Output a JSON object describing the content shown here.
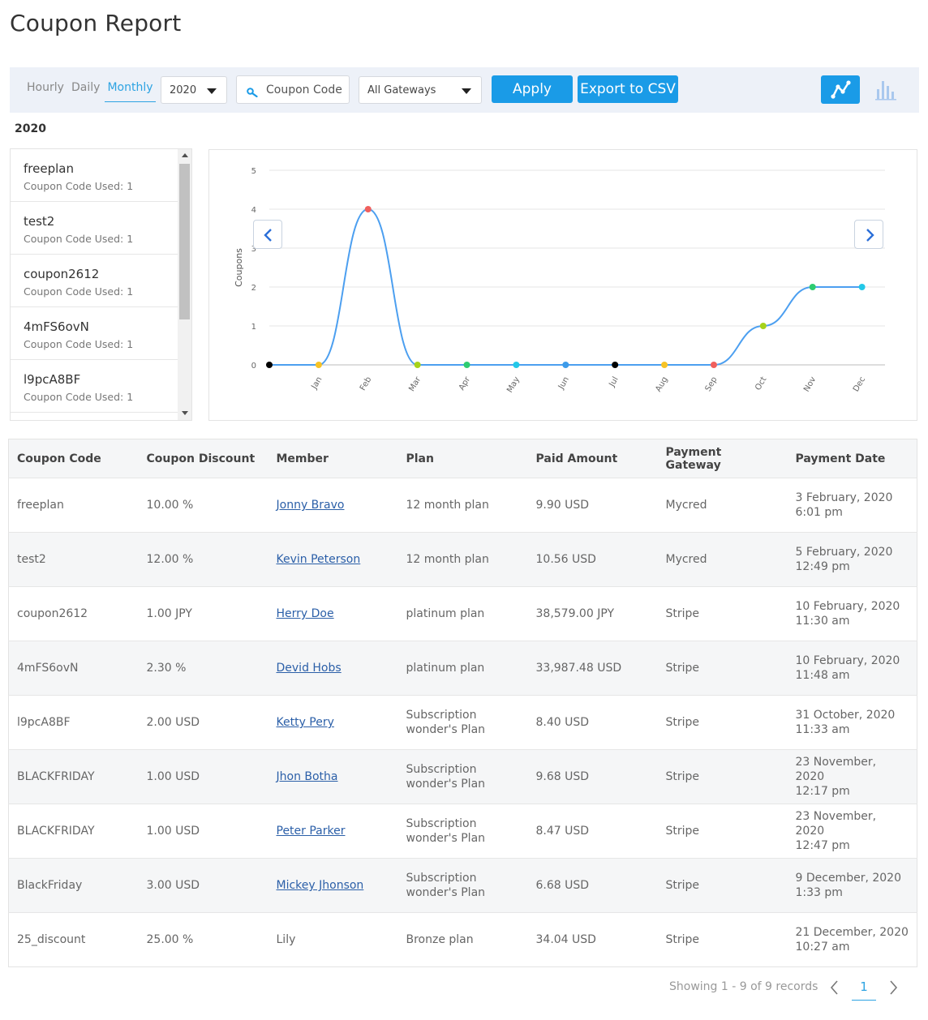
{
  "header": {
    "title": "Coupon Report"
  },
  "toolbar": {
    "periods": [
      {
        "label": "Hourly",
        "active": false
      },
      {
        "label": "Daily",
        "active": false
      },
      {
        "label": "Monthly",
        "active": true
      }
    ],
    "year_select": "2020",
    "search_placeholder": "Coupon Code",
    "gateway_select": "All Gateways",
    "apply_label": "Apply",
    "export_label": "Export to CSV",
    "view_icons": [
      "line-chart-icon",
      "bar-chart-icon"
    ],
    "accent_color": "#1a9be7"
  },
  "year_label": "2020",
  "coupon_list": [
    {
      "name": "freeplan",
      "used": "Coupon Code Used: 1"
    },
    {
      "name": "test2",
      "used": "Coupon Code Used: 1"
    },
    {
      "name": "coupon2612",
      "used": "Coupon Code Used: 1"
    },
    {
      "name": "4mFS6ovN",
      "used": "Coupon Code Used: 1"
    },
    {
      "name": "l9pcA8BF",
      "used": "Coupon Code Used: 1"
    }
  ],
  "chart_data": {
    "type": "line",
    "ylabel": "Coupons",
    "ylim": [
      0,
      5
    ],
    "yticks": [
      "0",
      "1",
      "2",
      "3",
      "4",
      "5"
    ],
    "categories": [
      "",
      "Jan",
      "Feb",
      "Mar",
      "Apr",
      "May",
      "Jun",
      "Jul",
      "Aug",
      "Sep",
      "Oct",
      "Nov",
      "Dec"
    ],
    "values": [
      0,
      0,
      4,
      0,
      0,
      0,
      0,
      0,
      0,
      0,
      1,
      2,
      2
    ],
    "point_colors": [
      "#000000",
      "#f7c325",
      "#f0605d",
      "#a6d21a",
      "#2ecc71",
      "#22c8e8",
      "#3d9be9",
      "#000000",
      "#f7c325",
      "#f0605d",
      "#a6d21a",
      "#2ecc71",
      "#22c8e8"
    ],
    "line_color": "#4c9ff0",
    "grid": true,
    "legend": "none"
  },
  "table": {
    "headers": [
      "Coupon Code",
      "Coupon Discount",
      "Member",
      "Plan",
      "Paid Amount",
      "Payment Gateway",
      "Payment Date"
    ],
    "rows": [
      {
        "code": "freeplan",
        "discount": "10.00 %",
        "member": "Jonny Bravo",
        "member_link": true,
        "plan": "12 month plan",
        "amount": "9.90 USD",
        "gateway": "Mycred",
        "date": "3 February, 2020",
        "time": "6:01 pm"
      },
      {
        "code": "test2",
        "discount": "12.00 %",
        "member": "Kevin Peterson",
        "member_link": true,
        "plan": "12 month plan",
        "amount": "10.56 USD",
        "gateway": "Mycred",
        "date": "5 February, 2020",
        "time": "12:49 pm"
      },
      {
        "code": "coupon2612",
        "discount": "1.00 JPY",
        "member": "Herry Doe",
        "member_link": true,
        "plan": "platinum plan",
        "amount": "38,579.00 JPY",
        "gateway": "Stripe",
        "date": "10 February, 2020",
        "time": "11:30 am"
      },
      {
        "code": "4mFS6ovN",
        "discount": "2.30 %",
        "member": "Devid Hobs",
        "member_link": true,
        "plan": "platinum plan",
        "amount": "33,987.48 USD",
        "gateway": "Stripe",
        "date": "10 February, 2020",
        "time": "11:48 am"
      },
      {
        "code": "l9pcA8BF",
        "discount": "2.00 USD",
        "member": "Ketty Pery",
        "member_link": true,
        "plan": "Subscription wonder's Plan",
        "amount": "8.40 USD",
        "gateway": "Stripe",
        "date": "31 October, 2020",
        "time": "11:33 am"
      },
      {
        "code": "BLACKFRIDAY",
        "discount": "1.00 USD",
        "member": "Jhon Botha",
        "member_link": true,
        "plan": "Subscription wonder's Plan",
        "amount": "9.68 USD",
        "gateway": "Stripe",
        "date": "23 November, 2020",
        "time": "12:17 pm"
      },
      {
        "code": "BLACKFRIDAY",
        "discount": "1.00 USD",
        "member": "Peter Parker",
        "member_link": true,
        "plan": "Subscription wonder's Plan",
        "amount": "8.47 USD",
        "gateway": "Stripe",
        "date": "23 November, 2020",
        "time": "12:47 pm"
      },
      {
        "code": "BlackFriday",
        "discount": "3.00 USD",
        "member": "Mickey Jhonson",
        "member_link": true,
        "plan": "Subscription wonder's Plan",
        "amount": "6.68 USD",
        "gateway": "Stripe",
        "date": "9 December, 2020",
        "time": "1:33 pm"
      },
      {
        "code": "25_discount",
        "discount": "25.00 %",
        "member": "Lily",
        "member_link": false,
        "plan": "Bronze plan",
        "amount": "34.04 USD",
        "gateway": "Stripe",
        "date": "21 December, 2020",
        "time": "10:27 am"
      }
    ]
  },
  "pagination": {
    "info": "Showing 1 - 9 of 9 records",
    "current_page": "1"
  }
}
